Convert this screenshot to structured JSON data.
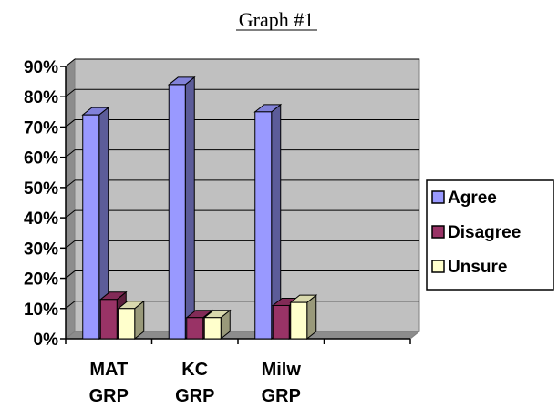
{
  "chart_data": {
    "type": "bar",
    "title": "Graph #1",
    "categories": [
      [
        "MAT",
        "GRP"
      ],
      [
        "KC",
        "GRP"
      ],
      [
        "Milw",
        "GRP"
      ],
      [
        "",
        ""
      ]
    ],
    "series": [
      {
        "name": "Agree",
        "color": "#9999ff",
        "values": [
          0.74,
          0.84,
          0.75,
          null
        ]
      },
      {
        "name": "Disagree",
        "color": "#993366",
        "values": [
          0.13,
          0.07,
          0.11,
          null
        ]
      },
      {
        "name": "Unsure",
        "color": "#ffffcc",
        "values": [
          0.1,
          0.07,
          0.12,
          null
        ]
      }
    ],
    "ylim": [
      0,
      0.9
    ],
    "ytick_labels": [
      "0%",
      "10%",
      "20%",
      "30%",
      "40%",
      "50%",
      "60%",
      "70%",
      "80%",
      "90%"
    ],
    "grid": true,
    "plot_background": "#c0c0c0",
    "legend_position": "right",
    "xlabel": "",
    "ylabel": ""
  }
}
